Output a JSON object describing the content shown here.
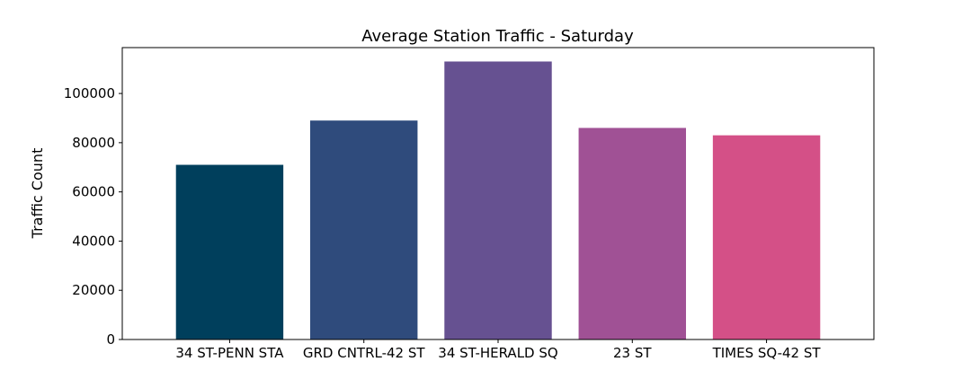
{
  "chart_data": {
    "type": "bar",
    "title": "Average Station Traffic - Saturday",
    "xlabel": "",
    "ylabel": "Traffic Count",
    "categories": [
      "34 ST-PENN STA",
      "GRD CNTRL-42 ST",
      "34 ST-HERALD SQ",
      "23 ST",
      "TIMES SQ-42 ST"
    ],
    "values": [
      71000,
      89000,
      113000,
      86000,
      83000
    ],
    "colors": [
      "#003f5c",
      "#2f4b7c",
      "#665191",
      "#a05195",
      "#d45087"
    ],
    "ylim": [
      0,
      118650
    ],
    "yticks": [
      0,
      20000,
      40000,
      60000,
      80000,
      100000
    ],
    "grid": false
  }
}
